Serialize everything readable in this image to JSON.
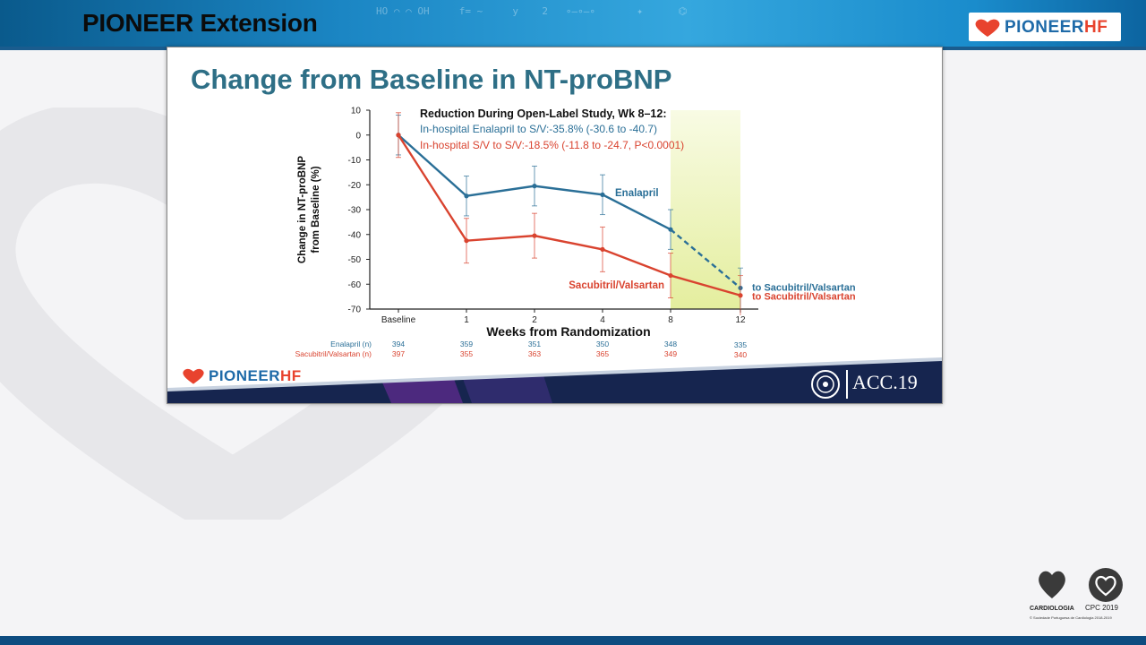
{
  "header": {
    "title": "PIONEER Extension",
    "logo_main": "PIONEER",
    "logo_suffix": "HF"
  },
  "slide": {
    "title": "Change from Baseline in NT-proBNP",
    "acc_label": "ACC.19",
    "logo_main": "PIONEER",
    "logo_suffix": "HF"
  },
  "footer": {
    "society_label": "CARDIOLOGIA",
    "society_footnote": "© Sociedade Portuguesa de Cardiologia 2018-2019",
    "cpc_label": "CPC 2019"
  },
  "chart_data": {
    "type": "line",
    "ylabel_line1": "Change in NT-proBNP",
    "ylabel_line2": "from Baseline (%)",
    "xlabel": "Weeks from Randomization",
    "x_categories": [
      "Baseline",
      "1",
      "2",
      "4",
      "8",
      "12"
    ],
    "yticks": [
      10,
      0,
      -10,
      -20,
      -30,
      -40,
      -50,
      -60,
      -70
    ],
    "ylim": [
      -70,
      10
    ],
    "annotation": {
      "heading": "Reduction During Open-Label Study, Wk 8–12:",
      "line1": "In-hospital Enalapril to S/V:-35.8% (-30.6 to -40.7)",
      "line2": "In-hospital S/V to S/V:-18.5% (-11.8 to -24.7, P<0.0001)"
    },
    "series": [
      {
        "name": "Enalapril",
        "color": "#2a6f97",
        "values": [
          0,
          -24.5,
          -20.5,
          -24,
          -38
        ],
        "err": [
          8,
          8,
          8,
          8,
          8
        ],
        "end_label": "to Sacubitril/Valsartan",
        "end_value": -61.5,
        "end_err": 8,
        "counts_label": "Enalapril (n)",
        "counts": [
          "394",
          "359",
          "351",
          "350",
          "348",
          "335"
        ]
      },
      {
        "name": "Sacubitril/Valsartan",
        "color": "#d9432f",
        "values": [
          0,
          -42.5,
          -40.5,
          -46,
          -56.5
        ],
        "err": [
          9,
          9,
          9,
          9,
          9
        ],
        "end_label": "to Sacubitril/Valsartan",
        "end_value": -64.5,
        "end_err": 8,
        "counts_label": "Sacubitril/Valsartan (n)",
        "counts": [
          "397",
          "355",
          "363",
          "365",
          "349",
          "340"
        ]
      }
    ],
    "highlight_range": [
      "8",
      "12"
    ],
    "highlight_color": "#e4ee9e"
  }
}
